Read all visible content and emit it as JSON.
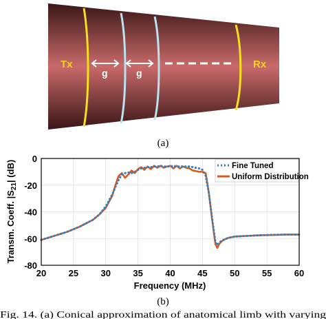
{
  "figure_a": {
    "label": "(a)",
    "tx_label": "Tx",
    "rx_label": "Rx",
    "gap_label": "g",
    "colors": {
      "limb_edge": "#3a1616",
      "limb_center": "#c96a6a",
      "tx_rx_ring": "#f7e020",
      "inner_ring": "#b9e4ef",
      "tx_rx_text": "#f2d21a",
      "arrow": "#ffffff"
    }
  },
  "figure_b": {
    "label": "(b)"
  },
  "caption": "Fig. 14. (a) Conical approximation of anatomical limb with varying",
  "chart_data": {
    "type": "line",
    "title": "",
    "xlabel": "Frequency (MHz)",
    "ylabel": "Transm. Coeff. |S21| (dB)",
    "xlim": [
      20,
      60
    ],
    "ylim": [
      -80,
      0
    ],
    "x_ticks": [
      20,
      25,
      30,
      35,
      40,
      45,
      50,
      55,
      60
    ],
    "y_ticks": [
      0,
      -20,
      -40,
      -60,
      -80
    ],
    "grid": true,
    "legend_position": "top-right",
    "series": [
      {
        "name": "Fine Tuned",
        "style": "dotted",
        "color": "#2e7fc4",
        "x": [
          20,
          22,
          24,
          26,
          28,
          29,
          30,
          31,
          32,
          32.5,
          33,
          33.5,
          34,
          34.5,
          35,
          35.5,
          36,
          36.5,
          37,
          37.5,
          38,
          38.5,
          39,
          39.5,
          40,
          40.5,
          41,
          41.5,
          42,
          42.5,
          43,
          43.5,
          44,
          44.5,
          45,
          45.5,
          46,
          46.5,
          47,
          47.3,
          47.6,
          48,
          48.5,
          49,
          50,
          52,
          54,
          56,
          58,
          60
        ],
        "y": [
          -61,
          -58,
          -55,
          -51,
          -46,
          -42,
          -36,
          -27,
          -16,
          -12,
          -11,
          -10.5,
          -11,
          -10,
          -8.5,
          -7.5,
          -7,
          -6.5,
          -6.5,
          -6,
          -6,
          -5.5,
          -6,
          -6,
          -6,
          -5.5,
          -6,
          -6,
          -6,
          -6,
          -6,
          -6.5,
          -7,
          -7.5,
          -8.5,
          -13,
          -26,
          -45,
          -62,
          -65,
          -63,
          -61.5,
          -60.5,
          -59.5,
          -58.5,
          -58,
          -57.5,
          -57.2,
          -57,
          -57
        ]
      },
      {
        "name": "Uniform Distribution",
        "style": "solid",
        "color": "#d85a20",
        "x": [
          20,
          22,
          24,
          26,
          28,
          29,
          30,
          31,
          31.5,
          32,
          32.5,
          33,
          33.5,
          34,
          34.5,
          35,
          35.5,
          36,
          36.5,
          37,
          37.5,
          38,
          38.5,
          39,
          39.5,
          40,
          40.5,
          41,
          41.5,
          42,
          42.5,
          43,
          43.5,
          44,
          44.5,
          45,
          45.5,
          46,
          46.5,
          47,
          47.3,
          47.6,
          48,
          48.5,
          49,
          50,
          52,
          54,
          56,
          58,
          60
        ],
        "y": [
          -61,
          -58,
          -55,
          -51,
          -46,
          -42,
          -37,
          -28,
          -20,
          -13,
          -11,
          -14.5,
          -12,
          -9,
          -11,
          -8,
          -6.5,
          -8.5,
          -6,
          -8,
          -5.5,
          -7,
          -5.5,
          -7,
          -6,
          -5.5,
          -7.5,
          -5.5,
          -7.5,
          -6,
          -7,
          -7.5,
          -9,
          -9.5,
          -10,
          -10,
          -11,
          -26,
          -46,
          -64,
          -67,
          -64,
          -62,
          -60.5,
          -59.5,
          -58.5,
          -58,
          -57.5,
          -57.3,
          -57,
          -57
        ]
      }
    ]
  }
}
